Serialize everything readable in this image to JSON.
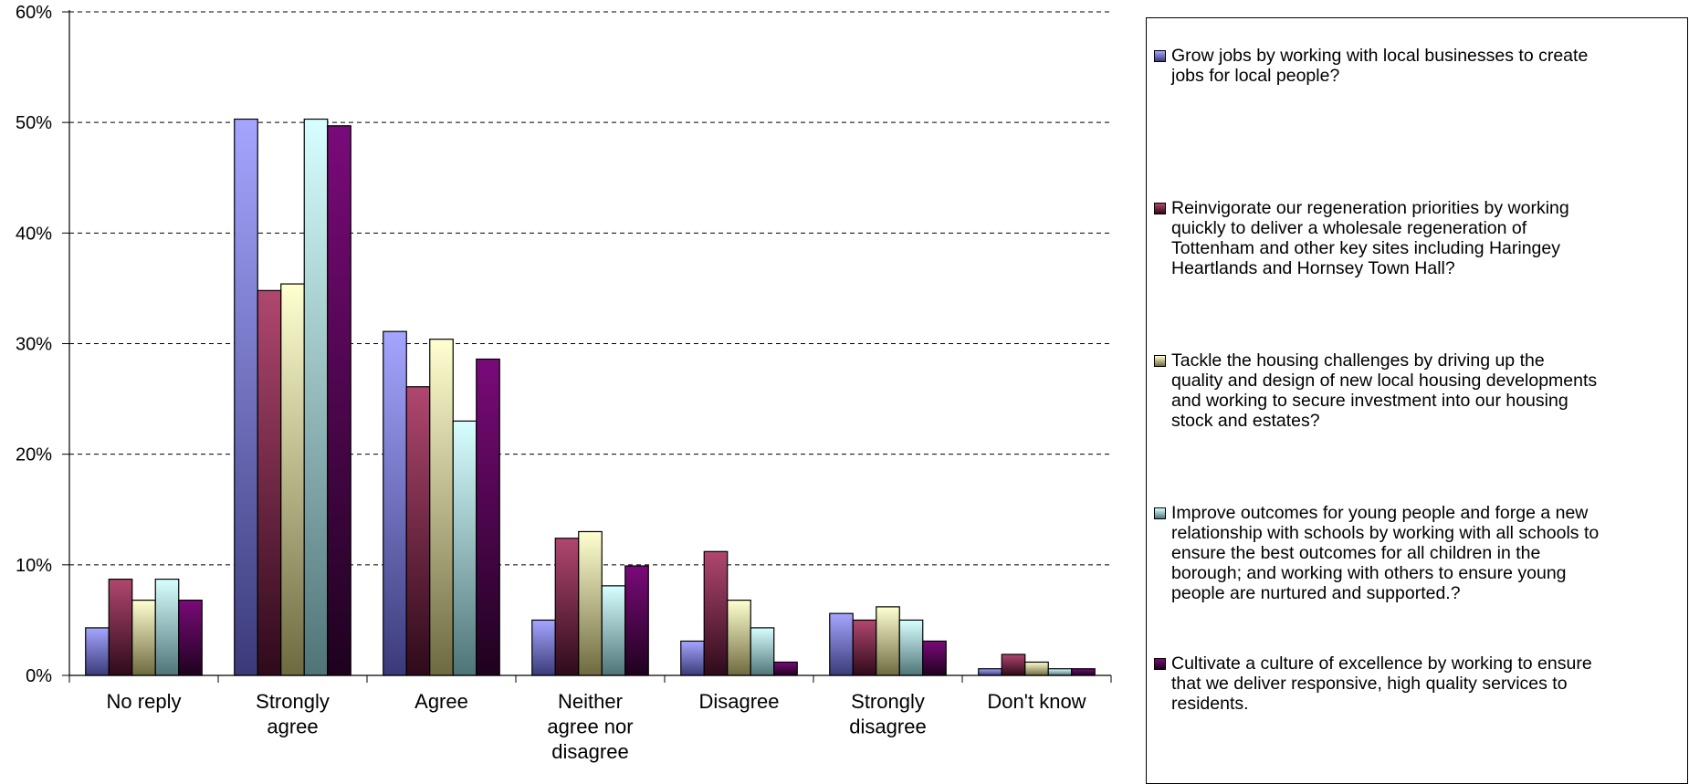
{
  "chart_data": {
    "type": "bar",
    "categories": [
      "No reply",
      "Strongly agree",
      "Agree",
      "Neither agree nor disagree",
      "Disagree",
      "Strongly disagree",
      "Don't know"
    ],
    "category_label_lines": [
      [
        "No reply"
      ],
      [
        "Strongly",
        "agree"
      ],
      [
        "Agree"
      ],
      [
        "Neither",
        "agree nor",
        "disagree"
      ],
      [
        "Disagree"
      ],
      [
        "Strongly",
        "disagree"
      ],
      [
        "Don't know"
      ]
    ],
    "y_ticks": [
      "0%",
      "10%",
      "20%",
      "30%",
      "40%",
      "50%",
      "60%"
    ],
    "ylim": [
      0,
      60
    ],
    "grid": true,
    "legend_position": "right",
    "series": [
      {
        "name": "Grow jobs by working with local businesses to create jobs for local people?",
        "values": [
          4.3,
          50.3,
          31.1,
          5.0,
          3.1,
          5.6,
          0.6
        ],
        "color_light": "#a5a5ff",
        "color_dark": "#3a3a7a"
      },
      {
        "name": "Reinvigorate our regeneration priorities by working quickly to deliver a wholesale regeneration of Tottenham and other key sites including Haringey Heartlands and Hornsey Town Hall?",
        "values": [
          8.7,
          34.8,
          26.1,
          12.4,
          11.2,
          5.0,
          1.9
        ],
        "color_light": "#b0476e",
        "color_dark": "#2e0a1a"
      },
      {
        "name": "Tackle the housing challenges by driving up the quality and design of new local housing developments and working to secure investment into our housing stock and estates?",
        "values": [
          6.8,
          35.4,
          30.4,
          13.0,
          6.8,
          6.2,
          1.2
        ],
        "color_light": "#ffffd0",
        "color_dark": "#6e6a40"
      },
      {
        "name": "Improve outcomes for young people and forge a new relationship with schools by working with all schools to ensure the best outcomes for all children in the borough; and working with others to ensure young people are nurtured and supported.?",
        "values": [
          8.7,
          50.3,
          23.0,
          8.1,
          4.3,
          5.0,
          0.6
        ],
        "color_light": "#d8ffff",
        "color_dark": "#4f7478"
      },
      {
        "name": "Cultivate a culture of excellence by working to ensure that we deliver responsive, high quality services to residents.",
        "values": [
          6.8,
          49.7,
          28.6,
          9.9,
          1.2,
          3.1,
          0.6
        ],
        "color_light": "#7a0a7a",
        "color_dark": "#1e021e"
      }
    ]
  },
  "legend": {
    "items": [
      {
        "label": "Grow jobs by working with local businesses to create jobs for local people?",
        "lines": [
          "Grow jobs by working with local businesses to create",
          "jobs for local people?"
        ]
      },
      {
        "label": "Reinvigorate our regeneration priorities by working quickly to deliver a wholesale regeneration of Tottenham and other key sites including Haringey Heartlands and Hornsey Town Hall?",
        "lines": [
          "Reinvigorate our regeneration priorities by working",
          "quickly to deliver a wholesale regeneration of",
          "Tottenham and other key sites including Haringey",
          "Heartlands and Hornsey Town Hall?"
        ]
      },
      {
        "label": "Tackle the housing challenges by driving up the quality and design of new local housing developments and working to secure investment into our housing stock and estates?",
        "lines": [
          "Tackle the housing challenges by driving up the",
          "quality and design of new local housing developments",
          "and working to secure investment into our housing",
          "stock and estates?"
        ]
      },
      {
        "label": "Improve outcomes for young people and forge a new relationship with schools by working with all schools to ensure the best outcomes for all children in the borough; and working with others to ensure young people are nurtured and supported.?",
        "lines": [
          "Improve outcomes for young people and forge a new",
          "relationship with schools by working with all schools to",
          "ensure the best outcomes for all children in the",
          "borough; and working with others to ensure young",
          "people are nurtured and supported.?"
        ]
      },
      {
        "label": "Cultivate a culture of excellence by working to ensure that we deliver responsive, high quality services to residents.",
        "lines": [
          "Cultivate a culture of excellence by working to ensure",
          "that we deliver responsive, high quality services to",
          "residents."
        ]
      }
    ]
  }
}
